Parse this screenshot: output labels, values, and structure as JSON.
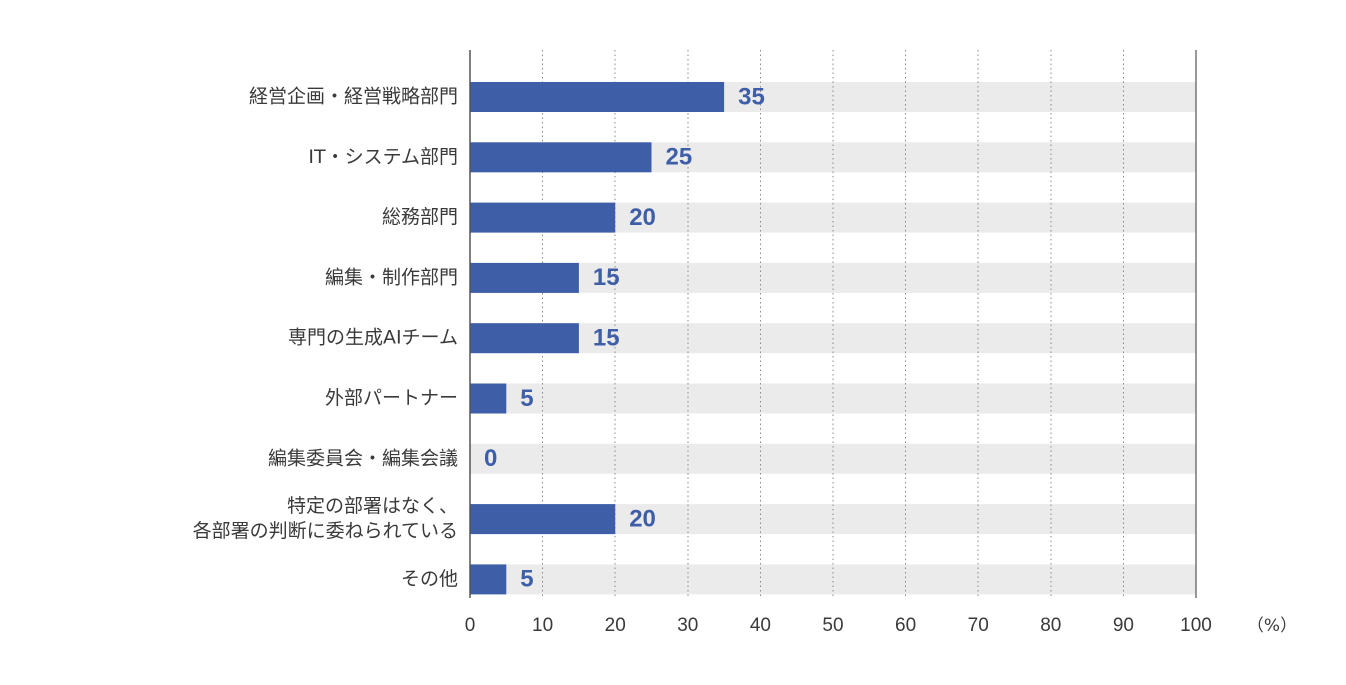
{
  "chart_data": {
    "type": "bar",
    "orientation": "horizontal",
    "categories": [
      "経営企画・経営戦略部門",
      "IT・システム部門",
      "総務部門",
      "編集・制作部門",
      "専門の生成AIチーム",
      "外部パートナー",
      "編集委員会・編集会議",
      "特定の部署はなく、\n各部署の判断に委ねられている",
      "その他"
    ],
    "values": [
      35,
      25,
      20,
      15,
      15,
      5,
      0,
      20,
      5
    ],
    "data_labels": [
      "35",
      "25",
      "20",
      "15",
      "15",
      "5",
      "0",
      "20",
      "5"
    ],
    "xlim": [
      0,
      100
    ],
    "x_ticks": [
      0,
      10,
      20,
      30,
      40,
      50,
      60,
      70,
      80,
      90,
      100
    ],
    "x_tick_labels": [
      "0",
      "10",
      "20",
      "30",
      "40",
      "50",
      "60",
      "70",
      "80",
      "90",
      "100"
    ],
    "x_unit": "（%）",
    "title": "",
    "xlabel": "",
    "ylabel": "",
    "grid": "vertical dotted",
    "colors": {
      "bar": "#3f5ea8",
      "track": "#ebebeb",
      "value_label": "#3f5ea8",
      "text": "#3a3a3a",
      "axis": "#555555",
      "grid": "#8a8a8a"
    }
  }
}
